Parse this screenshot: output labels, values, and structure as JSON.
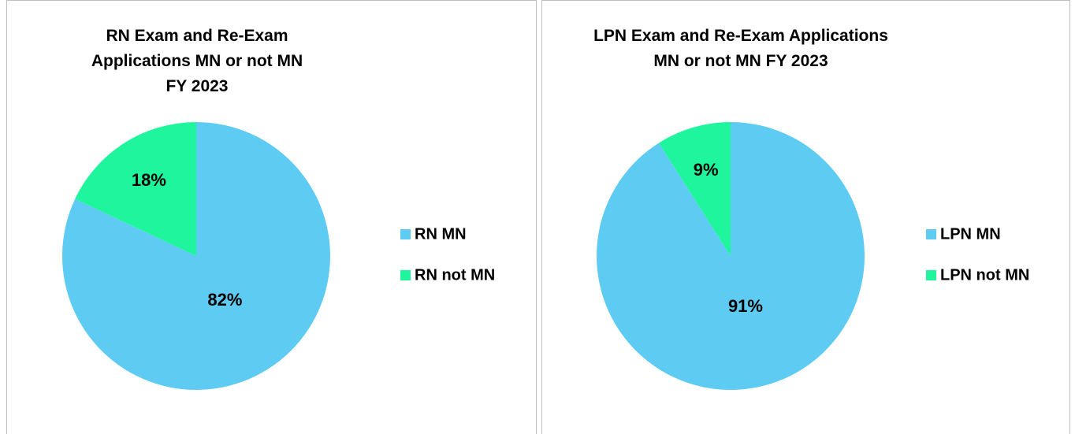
{
  "chart_data": [
    {
      "type": "pie",
      "title": "RN Exam and Re-Exam Applications MN or not MN FY 2023",
      "categories": [
        "RN MN",
        "RN not MN"
      ],
      "values": [
        82,
        18
      ],
      "value_labels": [
        "82%",
        "18%"
      ],
      "colors": [
        "#5ecbf2",
        "#1ff59d"
      ],
      "legend": "right"
    },
    {
      "type": "pie",
      "title": "LPN Exam and Re-Exam Applications MN or not MN FY 2023",
      "categories": [
        "LPN MN",
        "LPN not MN"
      ],
      "values": [
        91,
        9
      ],
      "value_labels": [
        "91%",
        "9%"
      ],
      "colors": [
        "#5ecbf2",
        "#1ff59d"
      ],
      "legend": "right"
    }
  ]
}
